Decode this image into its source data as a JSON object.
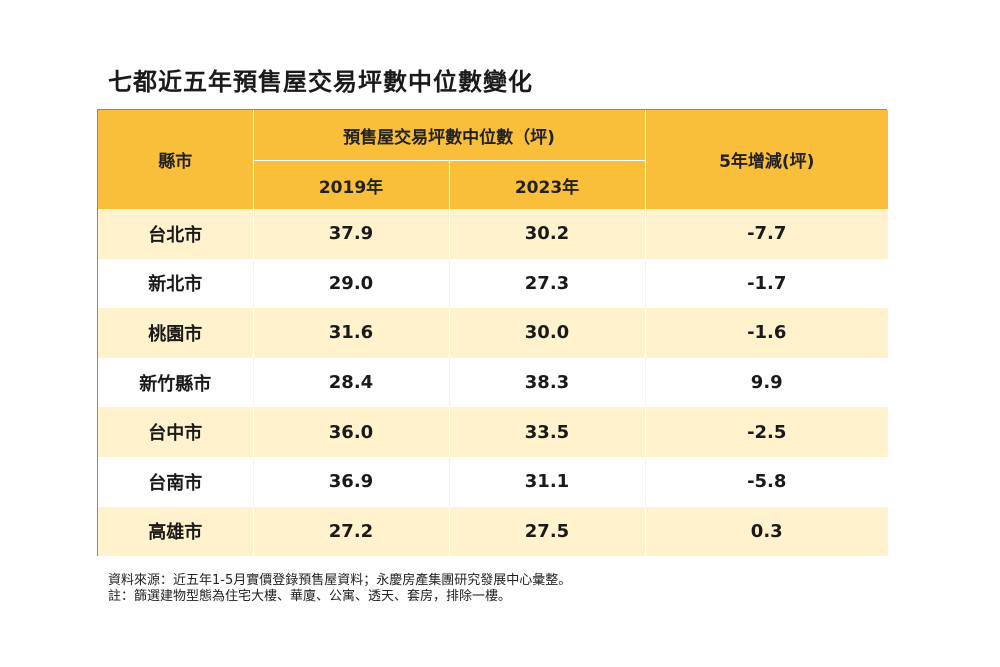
{
  "title": "七都近五年預售屋交易坪數中位數變化",
  "table": {
    "header": {
      "city": "縣市",
      "group": "預售屋交易坪數中位數（坪)",
      "year1": "2019年",
      "year2": "2023年",
      "change": "5年增減(坪)"
    },
    "rows": [
      {
        "city": "台北市",
        "y2019": "37.9",
        "y2023": "30.2",
        "change": "-7.7"
      },
      {
        "city": "新北市",
        "y2019": "29.0",
        "y2023": "27.3",
        "change": "-1.7"
      },
      {
        "city": "桃園市",
        "y2019": "31.6",
        "y2023": "30.0",
        "change": "-1.6"
      },
      {
        "city": "新竹縣市",
        "y2019": "28.4",
        "y2023": "38.3",
        "change": "9.9"
      },
      {
        "city": "台中市",
        "y2019": "36.0",
        "y2023": "33.5",
        "change": "-2.5"
      },
      {
        "city": "台南市",
        "y2019": "36.9",
        "y2023": "31.1",
        "change": "-5.8"
      },
      {
        "city": "高雄市",
        "y2019": "27.2",
        "y2023": "27.5",
        "change": "0.3"
      }
    ]
  },
  "notes": {
    "source": "資料來源：近五年1-5月實價登錄預售屋資料；永慶房產集團研究發展中心彙整。",
    "remark": "註：篩選建物型態為住宅大樓、華廈、公寓、透天、套房，排除一樓。"
  },
  "colors": {
    "header_bg": "#f9bf3b",
    "row_odd_bg": "#fff2cc",
    "row_even_bg": "#ffffff"
  }
}
